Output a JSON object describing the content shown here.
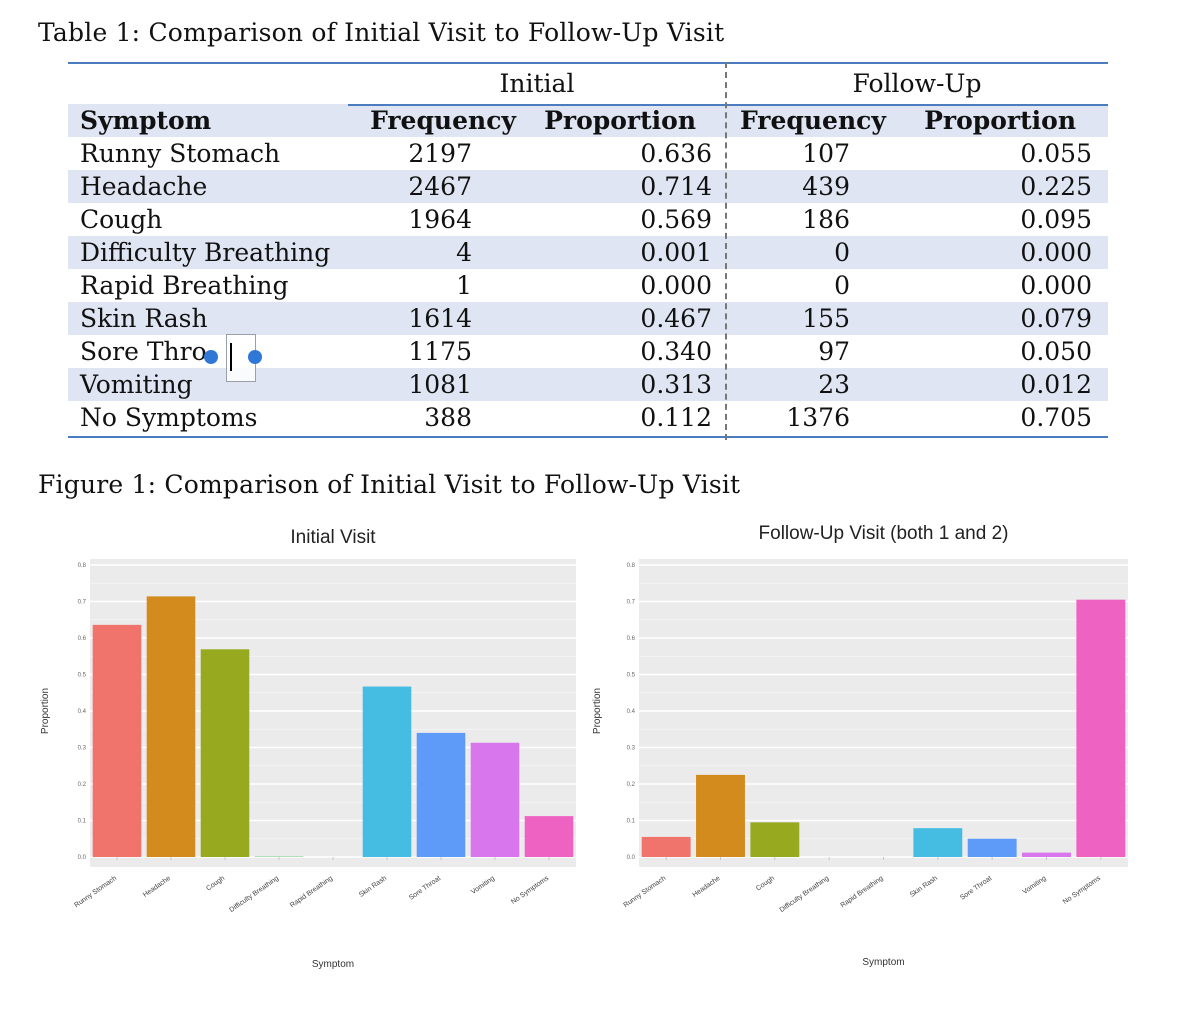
{
  "table": {
    "caption": "Table 1: Comparison of Initial Visit to Follow-Up Visit",
    "group_initial": "Initial",
    "group_follow": "Follow-Up",
    "headers": [
      "Symptom",
      "Frequency",
      "Proportion",
      "Frequency",
      "Proportion"
    ],
    "rows": [
      [
        "Runny Stomach",
        "2197",
        "0.636",
        "107",
        "0.055"
      ],
      [
        "Headache",
        "2467",
        "0.714",
        "439",
        "0.225"
      ],
      [
        "Cough",
        "1964",
        "0.569",
        "186",
        "0.095"
      ],
      [
        "Difficulty Breathing",
        "4",
        "0.001",
        "0",
        "0.000"
      ],
      [
        "Rapid Breathing",
        "1",
        "0.000",
        "0",
        "0.000"
      ],
      [
        "Skin Rash",
        "1614",
        "0.467",
        "155",
        "0.079"
      ],
      [
        "Sore Thro",
        "1175",
        "0.340",
        "97",
        "0.050"
      ],
      [
        "Vomiting",
        "1081",
        "0.313",
        "23",
        "0.012"
      ],
      [
        "No Symptoms",
        "388",
        "0.112",
        "1376",
        "0.705"
      ]
    ]
  },
  "figure": {
    "caption": "Figure 1: Comparison of Initial Visit to Follow-Up Visit"
  },
  "chart_data": [
    {
      "type": "bar",
      "title": "Initial Visit",
      "xlabel": "Symptom",
      "ylabel": "Proportion",
      "ylim": [
        0,
        0.8
      ],
      "yticks": [
        "0.0",
        "0.1",
        "0.2",
        "0.3",
        "0.4",
        "0.5",
        "0.6",
        "0.7",
        "0.8"
      ],
      "categories": [
        "Runny Stomach",
        "Headache",
        "Cough",
        "Difficulty Breathing",
        "Rapid Breathing",
        "Skin Rash",
        "Sore Throat",
        "Vomiting",
        "No Symptoms"
      ],
      "values": [
        0.636,
        0.714,
        0.569,
        0.001,
        0.0,
        0.467,
        0.34,
        0.313,
        0.112
      ],
      "colors": [
        "#F0746B",
        "#D38B1E",
        "#97A91F",
        "#3CB24A",
        "#22B98B",
        "#45BDE3",
        "#5E9AF7",
        "#D877ED",
        "#EE62C2"
      ],
      "grid": true,
      "background": "#EBEBEB"
    },
    {
      "type": "bar",
      "title": "Follow-Up Visit (both 1 and 2)",
      "xlabel": "Symptom",
      "ylabel": "Proportion",
      "ylim": [
        0,
        0.8
      ],
      "yticks": [
        "0.0",
        "0.1",
        "0.2",
        "0.3",
        "0.4",
        "0.5",
        "0.6",
        "0.7",
        "0.8"
      ],
      "categories": [
        "Runny Stomach",
        "Headache",
        "Cough",
        "Difficulty Breathing",
        "Rapid Breathing",
        "Skin Rash",
        "Sore Throat",
        "Vomiting",
        "No Symptoms"
      ],
      "values": [
        0.055,
        0.225,
        0.095,
        0.0,
        0.0,
        0.079,
        0.05,
        0.012,
        0.705
      ],
      "colors": [
        "#F0746B",
        "#D38B1E",
        "#97A91F",
        "#3CB24A",
        "#22B98B",
        "#45BDE3",
        "#5E9AF7",
        "#D877ED",
        "#EE62C2"
      ],
      "grid": true,
      "background": "#EBEBEB"
    }
  ]
}
